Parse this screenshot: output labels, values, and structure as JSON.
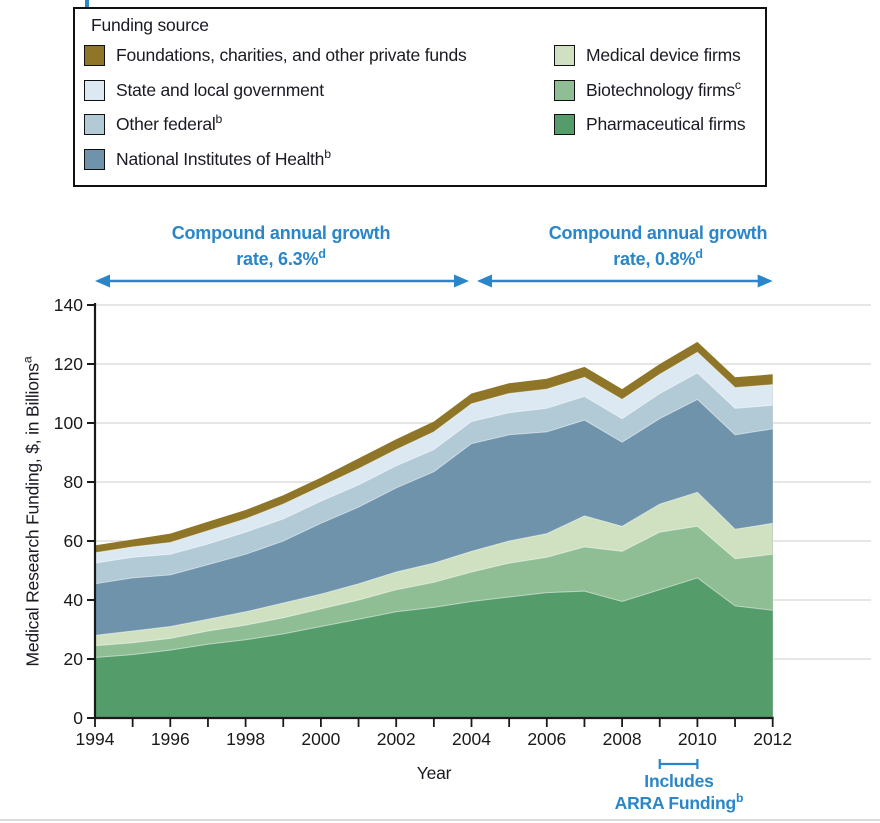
{
  "page": {
    "background": "#ffffff",
    "accent_blue": "#2A86C8",
    "text_color": "#1a1a24",
    "grid_color": "#D8D8D8"
  },
  "legend": {
    "title": "Funding source",
    "columns": [
      {
        "items": [
          {
            "label": "Foundations, charities, and other private funds",
            "sup": "",
            "color": "#8E7527"
          },
          {
            "label": "State and local government",
            "sup": "",
            "color": "#DCE9F2"
          },
          {
            "label": "Other federal",
            "sup": "b",
            "color": "#B2C9D6"
          },
          {
            "label": "National Institutes of Health",
            "sup": "b",
            "color": "#6E93AB"
          }
        ]
      },
      {
        "items": [
          {
            "label": "Medical device firms",
            "sup": "",
            "color": "#CFE1C0"
          },
          {
            "label": "Biotechnology firms",
            "sup": "c",
            "color": "#90BE94"
          },
          {
            "label": "Pharmaceutical firms",
            "sup": "",
            "color": "#559C6B"
          }
        ]
      }
    ]
  },
  "annotations": {
    "left_arrow": {
      "line1": "Compound annual growth",
      "line2": "rate, 6.3%",
      "sup": "d",
      "from_year": 1994,
      "to_year": 2004
    },
    "right_arrow": {
      "line1": "Compound annual growth",
      "line2": "rate, 0.8%",
      "sup": "d",
      "from_year": 2004,
      "to_year": 2012
    },
    "arra": {
      "line1": "Includes",
      "line2": "ARRA Funding",
      "sup": "b",
      "from_year": 2009,
      "to_year": 2010
    }
  },
  "axes": {
    "y_title": "Medical Research Funding, $, in Billions",
    "y_title_sup": "a",
    "x_title": "Year",
    "y_ticks": [
      0,
      20,
      40,
      60,
      80,
      100,
      120,
      140
    ],
    "x_labeled_ticks": [
      1994,
      1996,
      1998,
      2000,
      2002,
      2004,
      2006,
      2008,
      2010,
      2012
    ]
  },
  "chart_data": {
    "type": "area",
    "stacked": true,
    "title": "",
    "xlabel": "Year",
    "ylabel": "Medical Research Funding, $, in Billions",
    "xlim": [
      1994,
      2012
    ],
    "ylim": [
      0,
      140
    ],
    "grid": "horizontal",
    "x": [
      1994,
      1995,
      1996,
      1997,
      1998,
      1999,
      2000,
      2001,
      2002,
      2003,
      2004,
      2005,
      2006,
      2007,
      2008,
      2009,
      2010,
      2011,
      2012
    ],
    "series": [
      {
        "name": "Pharmaceutical firms",
        "color": "#559C6B",
        "values": [
          20.5,
          21.5,
          23,
          25,
          26.5,
          28.5,
          31,
          33.5,
          36,
          37.5,
          39.5,
          41,
          42.5,
          43,
          39.5,
          43.5,
          47.5,
          38,
          36.5
        ]
      },
      {
        "name": "Biotechnology firms",
        "color": "#90BE94",
        "values": [
          4,
          4,
          4,
          4.5,
          5,
          5.5,
          6,
          6.5,
          7.5,
          8.5,
          10,
          11.5,
          12,
          15,
          17,
          19.5,
          17.5,
          16,
          19
        ]
      },
      {
        "name": "Medical device firms",
        "color": "#CFE1C0",
        "values": [
          3.5,
          4,
          4,
          4,
          4.5,
          5,
          5,
          5.5,
          6,
          6.5,
          7,
          7.5,
          8,
          10.5,
          8.5,
          9.5,
          11.5,
          10,
          10.5
        ]
      },
      {
        "name": "National Institutes of Health",
        "color": "#6E93AB",
        "values": [
          17.5,
          18,
          17.5,
          18.5,
          19.5,
          21,
          24,
          26,
          28.5,
          31,
          36.5,
          36,
          34.5,
          32.5,
          28.5,
          29,
          31.5,
          32,
          32
        ]
      },
      {
        "name": "Other federal",
        "color": "#B2C9D6",
        "values": [
          7,
          7,
          7,
          7,
          7.5,
          7.5,
          7.5,
          7.5,
          7.5,
          7.5,
          7.5,
          7.5,
          8,
          8,
          8,
          8.5,
          9,
          9,
          8
        ]
      },
      {
        "name": "State and local government",
        "color": "#DCE9F2",
        "values": [
          3.5,
          3.5,
          4,
          4.5,
          4.5,
          5,
          5,
          5.5,
          5.5,
          6,
          6,
          6.5,
          6.5,
          6.5,
          6.5,
          6.5,
          7,
          7,
          7
        ]
      },
      {
        "name": "Foundations, charities, and other private funds",
        "color": "#8E7527",
        "values": [
          2.5,
          2.5,
          3,
          3,
          3,
          3,
          3,
          3.5,
          3.5,
          3.5,
          3.5,
          3.5,
          3.5,
          3.5,
          3.5,
          3.5,
          3.5,
          3.5,
          3.5
        ]
      }
    ]
  }
}
